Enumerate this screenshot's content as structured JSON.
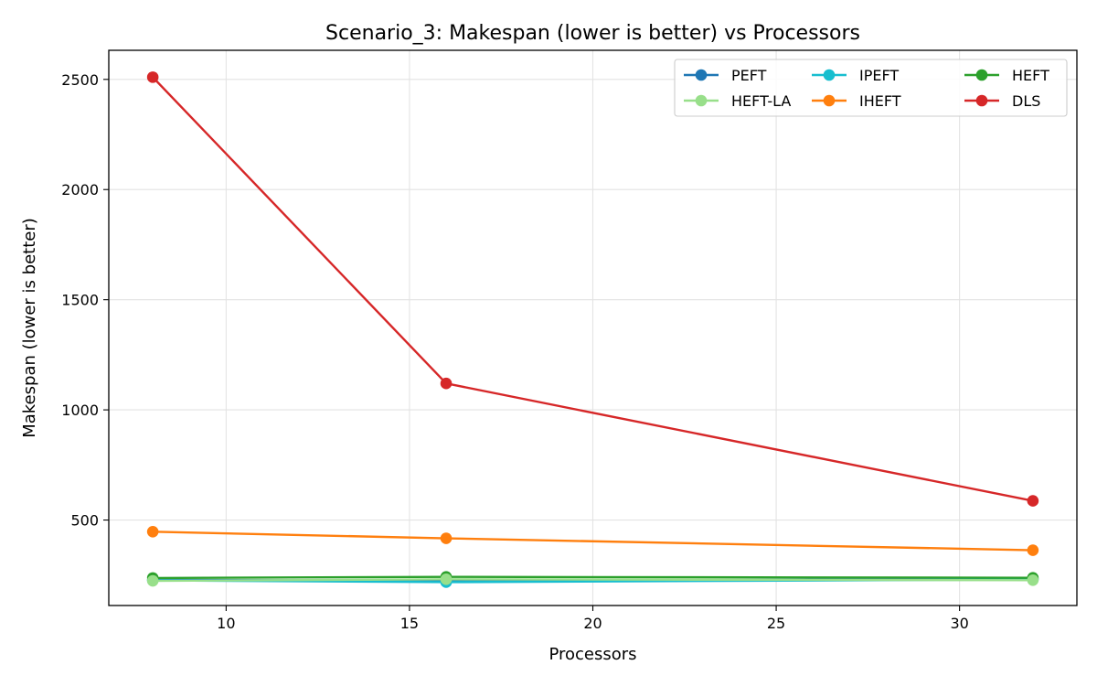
{
  "chart_data": {
    "type": "line",
    "title": "Scenario_3: Makespan (lower is better) vs Processors",
    "xlabel": "Processors",
    "ylabel": "Makespan (lower is better)",
    "x": [
      8,
      16,
      32
    ],
    "xlim": [
      6.8,
      33.2
    ],
    "ylim": [
      112,
      2632
    ],
    "xticks": [
      10,
      15,
      20,
      25,
      30
    ],
    "yticks": [
      500,
      1000,
      1500,
      2000,
      2500
    ],
    "grid": true,
    "legend_position": "upper-right",
    "legend_columns": 3,
    "series": [
      {
        "name": "PEFT",
        "color": "#1f77b4",
        "values": [
          228,
          225,
          232
        ]
      },
      {
        "name": "IPEFT",
        "color": "#17becf",
        "values": [
          226,
          218,
          230
        ]
      },
      {
        "name": "HEFT",
        "color": "#2ca02c",
        "values": [
          237,
          242,
          238
        ]
      },
      {
        "name": "HEFT-LA",
        "color": "#98df8a",
        "values": [
          224,
          231,
          227
        ]
      },
      {
        "name": "IHEFT",
        "color": "#ff7f0e",
        "values": [
          447,
          417,
          363
        ]
      },
      {
        "name": "DLS",
        "color": "#d62728",
        "values": [
          2510,
          1120,
          587
        ]
      }
    ]
  }
}
